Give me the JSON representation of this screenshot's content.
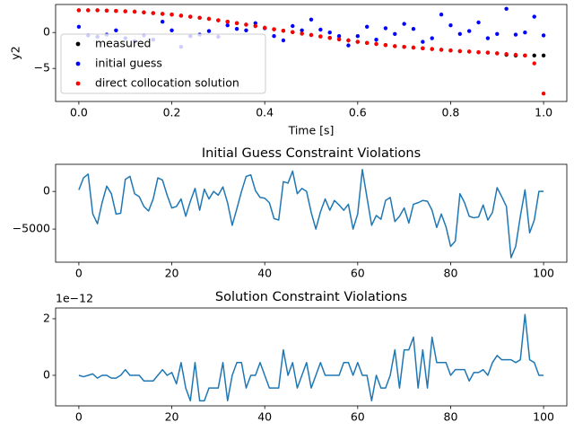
{
  "chart_data": [
    {
      "type": "scatter",
      "xlabel": "Time [s]",
      "ylabel": "y2",
      "legend": "upper left",
      "xlim": [
        -0.05,
        1.05
      ],
      "ylim": [
        -9.6,
        3.9
      ],
      "xticks": [
        {
          "value": 0,
          "label": "0.0"
        },
        {
          "value": 0.2,
          "label": "0.2"
        },
        {
          "value": 0.4,
          "label": "0.4"
        },
        {
          "value": 0.6,
          "label": "0.6"
        },
        {
          "value": 0.8,
          "label": "0.8"
        },
        {
          "value": 1.0,
          "label": "1.0"
        }
      ],
      "yticks": [
        {
          "value": -5,
          "label": "−5"
        },
        0
      ],
      "x": [
        0,
        0.02,
        0.04,
        0.06,
        0.08,
        0.1,
        0.12,
        0.14,
        0.16,
        0.18,
        0.2,
        0.22,
        0.24,
        0.26,
        0.28,
        0.3,
        0.32,
        0.34,
        0.36,
        0.38,
        0.4,
        0.42,
        0.44,
        0.46,
        0.48,
        0.5,
        0.52,
        0.54,
        0.56,
        0.58,
        0.6,
        0.62,
        0.64,
        0.66,
        0.68,
        0.7,
        0.72,
        0.74,
        0.76,
        0.78,
        0.8,
        0.82,
        0.84,
        0.86,
        0.88,
        0.9,
        0.92,
        0.94,
        0.96,
        0.98,
        1.0
      ],
      "series": [
        {
          "name": "measured",
          "color": "#000000",
          "values": [
            3.1,
            3.1,
            3.1,
            3.05,
            3.0,
            2.95,
            2.9,
            2.8,
            2.7,
            2.6,
            2.5,
            2.35,
            2.2,
            2.05,
            1.9,
            1.7,
            1.5,
            1.3,
            1.1,
            0.9,
            0.65,
            0.45,
            0.25,
            0.05,
            -0.15,
            -0.35,
            -0.55,
            -0.75,
            -0.95,
            -1.1,
            -1.3,
            -1.45,
            -1.6,
            -1.75,
            -1.9,
            -2.0,
            -2.1,
            -2.2,
            -2.3,
            -2.4,
            -2.5,
            -2.6,
            -2.65,
            -2.75,
            -2.8,
            -2.9,
            -3.1,
            -3.2,
            -3.2,
            -3.2,
            -3.2
          ]
        },
        {
          "name": "initial guess",
          "color": "#0000ff",
          "values": [
            0.8,
            -0.4,
            -0.6,
            -0.3,
            0.3,
            -0.8,
            -1.2,
            -0.4,
            -1.0,
            1.5,
            0.3,
            -2.0,
            -0.5,
            -0.3,
            0.2,
            -0.6,
            1.0,
            0.5,
            0.3,
            1.3,
            0.6,
            -0.5,
            -1.1,
            0.9,
            0.3,
            1.8,
            0.4,
            0.0,
            -0.5,
            -1.8,
            -0.5,
            0.8,
            -1.0,
            0.6,
            -0.2,
            1.2,
            0.5,
            -1.3,
            -0.8,
            2.5,
            1.0,
            -0.2,
            0.2,
            1.4,
            -0.8,
            -0.2,
            3.3,
            -0.3,
            0.0,
            2.2,
            -0.4
          ]
        },
        {
          "name": "direct collocation solution",
          "color": "#ff0000",
          "values": [
            3.1,
            3.1,
            3.1,
            3.05,
            3.0,
            2.95,
            2.9,
            2.8,
            2.7,
            2.6,
            2.5,
            2.35,
            2.2,
            2.05,
            1.9,
            1.7,
            1.5,
            1.3,
            1.1,
            0.9,
            0.65,
            0.45,
            0.25,
            0.05,
            -0.15,
            -0.35,
            -0.55,
            -0.75,
            -0.95,
            -1.1,
            -1.3,
            -1.45,
            -1.6,
            -1.75,
            -1.9,
            -2.0,
            -2.1,
            -2.2,
            -2.3,
            -2.4,
            -2.5,
            -2.6,
            -2.65,
            -2.75,
            -2.8,
            -2.9,
            -3.0,
            -3.1,
            -3.2,
            -4.3,
            -8.5
          ]
        }
      ]
    },
    {
      "type": "line",
      "title": "Initial Guess Constraint Violations",
      "color": "#1f77b4",
      "xlim": [
        -5,
        105
      ],
      "ylim": [
        -9400,
        3600
      ],
      "xticks": [
        0,
        20,
        40,
        60,
        80,
        100
      ],
      "yticks": [
        {
          "value": -5000,
          "label": "−5000"
        },
        0
      ],
      "x": [
        0,
        1,
        2,
        3,
        4,
        5,
        6,
        7,
        8,
        9,
        10,
        11,
        12,
        13,
        14,
        15,
        16,
        17,
        18,
        19,
        20,
        21,
        22,
        23,
        24,
        25,
        26,
        27,
        28,
        29,
        30,
        31,
        32,
        33,
        34,
        35,
        36,
        37,
        38,
        39,
        40,
        41,
        42,
        43,
        44,
        45,
        46,
        47,
        48,
        49,
        50,
        51,
        52,
        53,
        54,
        55,
        56,
        57,
        58,
        59,
        60,
        61,
        62,
        63,
        64,
        65,
        66,
        67,
        68,
        69,
        70,
        71,
        72,
        73,
        74,
        75,
        76,
        77,
        78,
        79,
        80,
        81,
        82,
        83,
        84,
        85,
        86,
        87,
        88,
        89,
        90,
        91,
        92,
        93,
        94,
        95,
        96,
        97,
        98,
        99,
        100
      ],
      "values": [
        200,
        1800,
        2300,
        -3000,
        -4300,
        -1500,
        700,
        -300,
        -3000,
        -2900,
        1600,
        2000,
        -300,
        -700,
        -2000,
        -2600,
        -1000,
        1800,
        1500,
        -500,
        -2200,
        -2000,
        -1000,
        -3300,
        -1300,
        400,
        -2500,
        300,
        -1000,
        0,
        -500,
        600,
        -1500,
        -4500,
        -2300,
        0,
        2000,
        2200,
        100,
        -800,
        -900,
        -1500,
        -3600,
        -3800,
        1300,
        1100,
        2700,
        -300,
        400,
        0,
        -2800,
        -5000,
        -2700,
        -1000,
        -2500,
        -1200,
        -1800,
        -2500,
        -1700,
        -5000,
        -3000,
        2900,
        -800,
        -4500,
        -3200,
        -3700,
        -1200,
        -800,
        -4000,
        -3300,
        -2200,
        -4200,
        -1700,
        -1500,
        -1200,
        -1300,
        -2500,
        -4800,
        -3000,
        -4700,
        -7300,
        -6600,
        -300,
        -1500,
        -3300,
        -3500,
        -3400,
        -1800,
        -3800,
        -2800,
        500,
        -700,
        -2000,
        -8800,
        -7300,
        -3300,
        200,
        -5500,
        -3800,
        0,
        0
      ]
    },
    {
      "type": "line",
      "title": "Solution Constraint Violations",
      "offset_text": "1e−12",
      "color": "#1f77b4",
      "xlim": [
        -5,
        105
      ],
      "ylim": [
        -1.08,
        2.38
      ],
      "xticks": [
        0,
        20,
        40,
        60,
        80,
        100
      ],
      "yticks": [
        0,
        2
      ],
      "x": [
        0,
        1,
        2,
        3,
        4,
        5,
        6,
        7,
        8,
        9,
        10,
        11,
        12,
        13,
        14,
        15,
        16,
        17,
        18,
        19,
        20,
        21,
        22,
        23,
        24,
        25,
        26,
        27,
        28,
        29,
        30,
        31,
        32,
        33,
        34,
        35,
        36,
        37,
        38,
        39,
        40,
        41,
        42,
        43,
        44,
        45,
        46,
        47,
        48,
        49,
        50,
        51,
        52,
        53,
        54,
        55,
        56,
        57,
        58,
        59,
        60,
        61,
        62,
        63,
        64,
        65,
        66,
        67,
        68,
        69,
        70,
        71,
        72,
        73,
        74,
        75,
        76,
        77,
        78,
        79,
        80,
        81,
        82,
        83,
        84,
        85,
        86,
        87,
        88,
        89,
        90,
        91,
        92,
        93,
        94,
        95,
        96,
        97,
        98,
        99,
        100
      ],
      "values": [
        0,
        -0.05,
        0,
        0.05,
        -0.1,
        0,
        0,
        -0.1,
        -0.1,
        0,
        0.2,
        0,
        0,
        0,
        -0.2,
        -0.2,
        -0.2,
        0,
        0.2,
        0,
        0.1,
        -0.3,
        0.45,
        -0.45,
        -0.9,
        0.45,
        -0.9,
        -0.9,
        -0.45,
        -0.45,
        -0.45,
        0.45,
        -0.9,
        0,
        0.45,
        0.45,
        -0.45,
        0,
        0,
        0.45,
        0,
        -0.45,
        -0.45,
        -0.45,
        0.9,
        0,
        0.45,
        -0.45,
        0,
        0.45,
        -0.45,
        0,
        0.45,
        0,
        0,
        0,
        0,
        0.45,
        0.45,
        0,
        0.45,
        0,
        0,
        -0.9,
        0,
        -0.45,
        -0.45,
        0,
        0.9,
        -0.45,
        0.9,
        0.9,
        1.35,
        -0.45,
        0.9,
        -0.45,
        1.35,
        0.45,
        0.45,
        0.45,
        0,
        0.2,
        0.2,
        0.2,
        -0.2,
        0.1,
        0.1,
        0.2,
        0,
        0.45,
        0.7,
        0.55,
        0.55,
        0.55,
        0.45,
        0.55,
        2.15,
        0.55,
        0.45,
        0,
        0
      ]
    }
  ]
}
